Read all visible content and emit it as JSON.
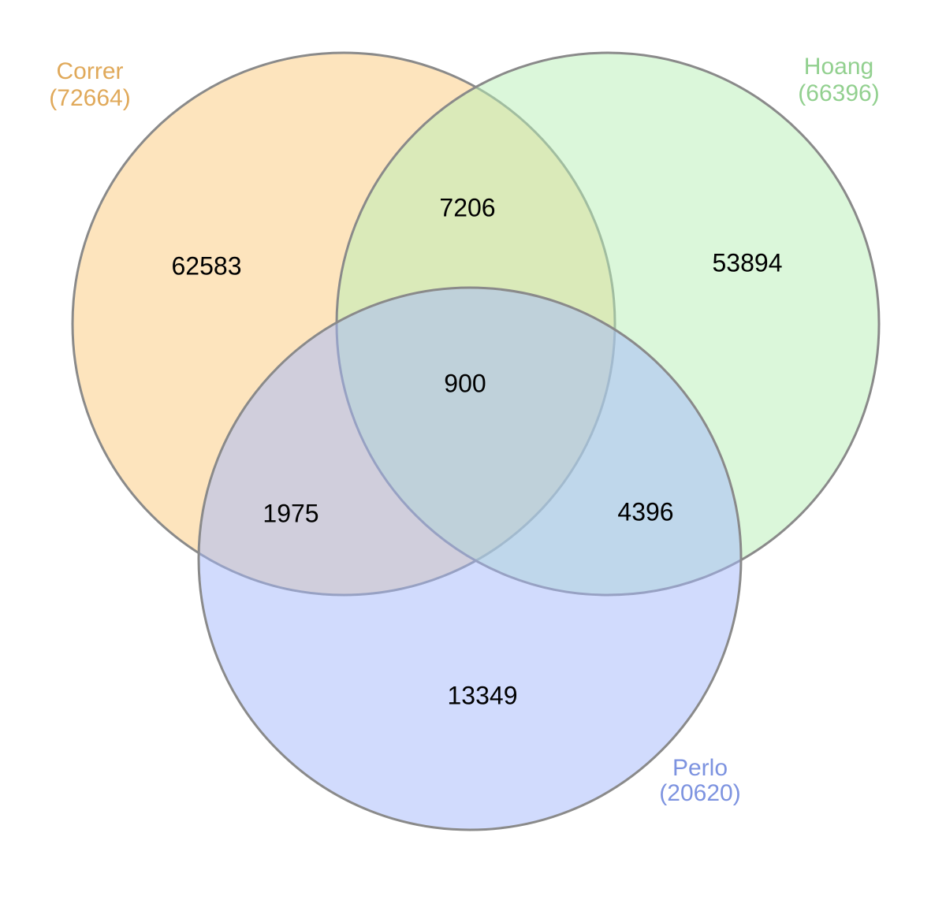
{
  "sets": [
    {
      "name": "Correr",
      "size_label": "(72664)",
      "color": "#fbc97b"
    },
    {
      "name": "Hoang",
      "size_label": "(66396)",
      "color": "#b7efb5"
    },
    {
      "name": "Perlo",
      "size_label": "(20620)",
      "color": "#a3b8fb"
    }
  ],
  "label_colors": {
    "Correr": "#e0a95a",
    "Hoang": "#92d08f",
    "Perlo": "#7d93e0"
  },
  "regions": {
    "correr_only": "62583",
    "hoang_only": "53894",
    "perlo_only": "13349",
    "correr_hoang": "7206",
    "correr_perlo": "1975",
    "hoang_perlo": "4396",
    "all_three": "900"
  }
}
